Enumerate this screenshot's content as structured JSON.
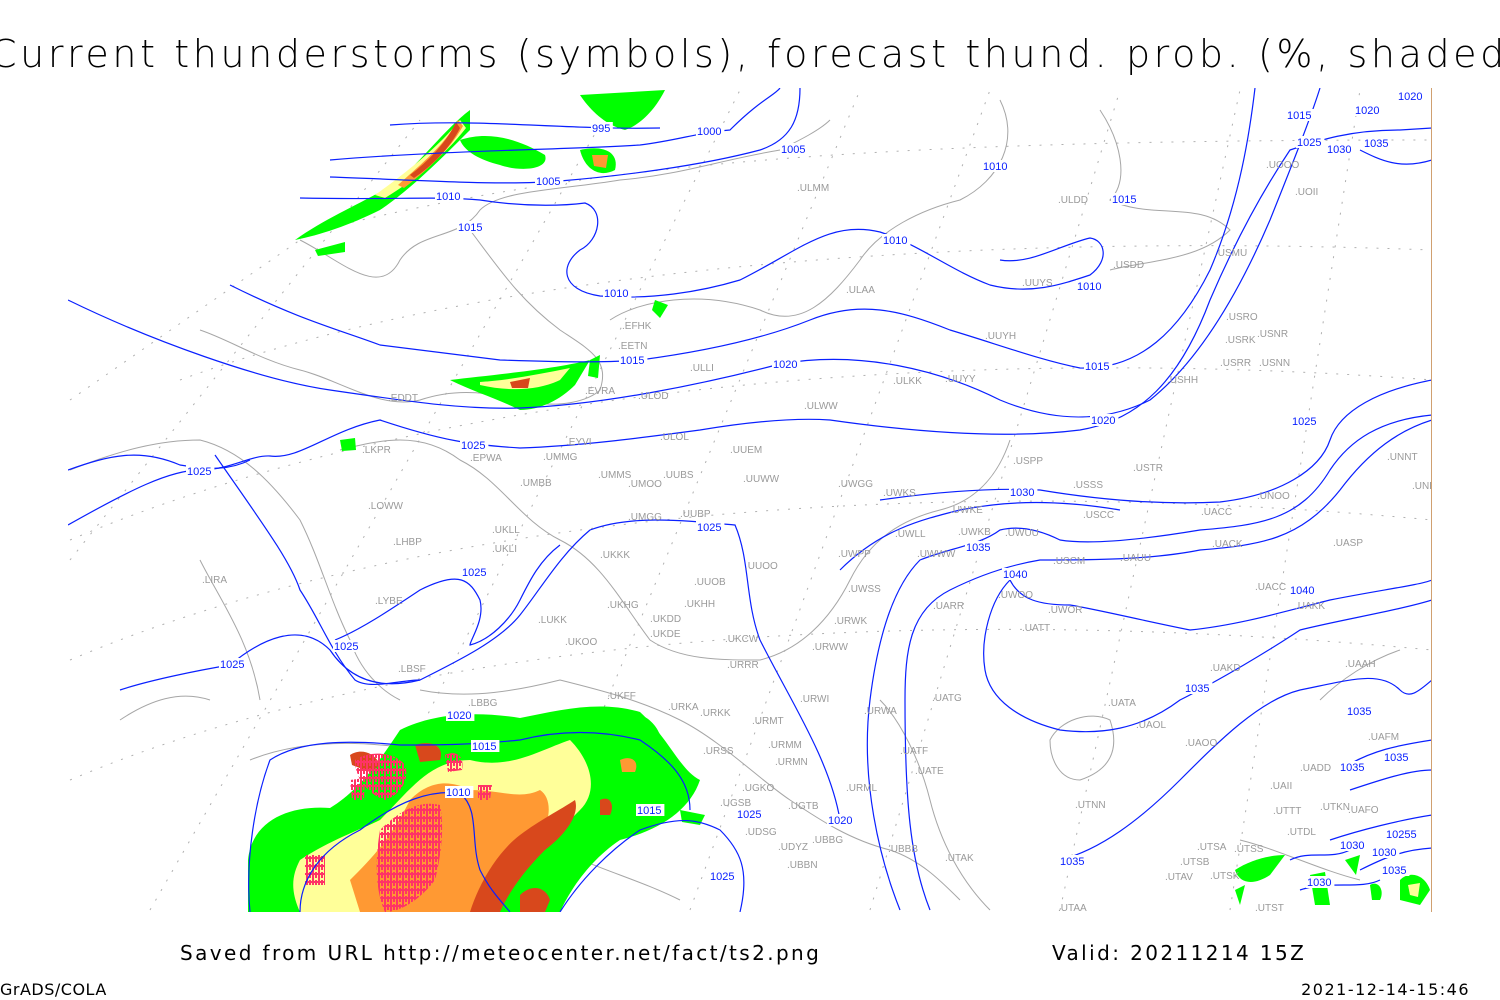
{
  "title": "Current thunderstorms (symbols), forecast thund. prob. (%, shaded)",
  "footer": {
    "saved": "Saved from URL http://meteocenter.net/fact/ts2.png",
    "valid": "Valid: 20211214 15Z",
    "software": "GrADS/COLA",
    "timestamp": "2021-12-14-15:46"
  },
  "colors": {
    "isobar": "#0a20ff",
    "coastline": "#a6a6a6",
    "station_label": "#9a9a9a",
    "prob_low": "#00ff00",
    "prob_mid": "#ffff99",
    "prob_high": "#ff9933",
    "prob_very_high": "#d8481c",
    "thunderstorm_symbol": "#ff3366"
  },
  "isobar_labels": [
    "995",
    "1000",
    "1005",
    "1005",
    "1010",
    "1010",
    "1010",
    "1010",
    "1010",
    "1015",
    "1015",
    "1015",
    "1015",
    "1020",
    "1020",
    "1025",
    "1025",
    "1025",
    "1025",
    "1025",
    "1025",
    "1030",
    "1035",
    "1035",
    "1040",
    "1040",
    "1035",
    "1020",
    "1015",
    "1010",
    "1015",
    "1020",
    "1020",
    "1025",
    "1030",
    "1035",
    "1015",
    "1020",
    "1025",
    "1030",
    "1035",
    "1035",
    "1030",
    "1035",
    "10255",
    "1030",
    "1035",
    "1025",
    "1025"
  ],
  "stations": [
    "EFHK",
    "EETN",
    "EVRA",
    "ULLI",
    "ULOD",
    "EDDT",
    "EPWA",
    "UMMG",
    "EYVI",
    "ULOL",
    "UUEM",
    "LKPR",
    "UMMS",
    "UMOO",
    "UUBS",
    "UUWW",
    "UMBB",
    "LOWW",
    "UMGG",
    "UUBP",
    "UKLL",
    "LHBP",
    "UKLI",
    "UKKK",
    "UUOO",
    "LIRA",
    "LYBE",
    "UUOB",
    "UKHH",
    "UKHG",
    "UKDD",
    "LUKK",
    "UKDE",
    "UKOO",
    "UKCW",
    "URRR",
    "LBSF",
    "LBBG",
    "UKFF",
    "URKA",
    "URKK",
    "URMT",
    "URSS",
    "URMM",
    "URMN",
    "UGKO",
    "UGSB",
    "UGTB",
    "UBBG",
    "UDSG",
    "UDYZ",
    "UBBN",
    "UBBB",
    "URWI",
    "URWW",
    "URWA",
    "URML",
    "UATG",
    "UATE",
    "UATF",
    "UTAK",
    "UTAA",
    "ULMM",
    "ULAA",
    "UUYH",
    "UUYY",
    "ULWW",
    "UUYS",
    "ULDD",
    "USDD",
    "USMU",
    "UOII",
    "UOOO",
    "USRO",
    "USRK",
    "USNR",
    "USRR",
    "USNN",
    "USHH",
    "ULKK",
    "UWGG",
    "UWKS",
    "USPP",
    "USTR",
    "USSS",
    "UWKE",
    "UWKB",
    "UWUU",
    "USCC",
    "UWLL",
    "UWPP",
    "UWWW",
    "USCM",
    "UAUU",
    "UWSS",
    "UWOO",
    "UARR",
    "UWOR",
    "UATT",
    "URWK",
    "UNNT",
    "UNBB",
    "UNOO",
    "UACC",
    "UACK",
    "UASP",
    "UACC",
    "UAKK",
    "UAKD",
    "UAAH",
    "UATA",
    "UAOL",
    "UAOO",
    "UTNN",
    "UADD",
    "UAFM",
    "UAII",
    "UTTT",
    "UTKN",
    "UAFO",
    "UTDL",
    "UTSA",
    "UTSS",
    "UTSB",
    "UTAV",
    "UTSK",
    "UTST"
  ]
}
